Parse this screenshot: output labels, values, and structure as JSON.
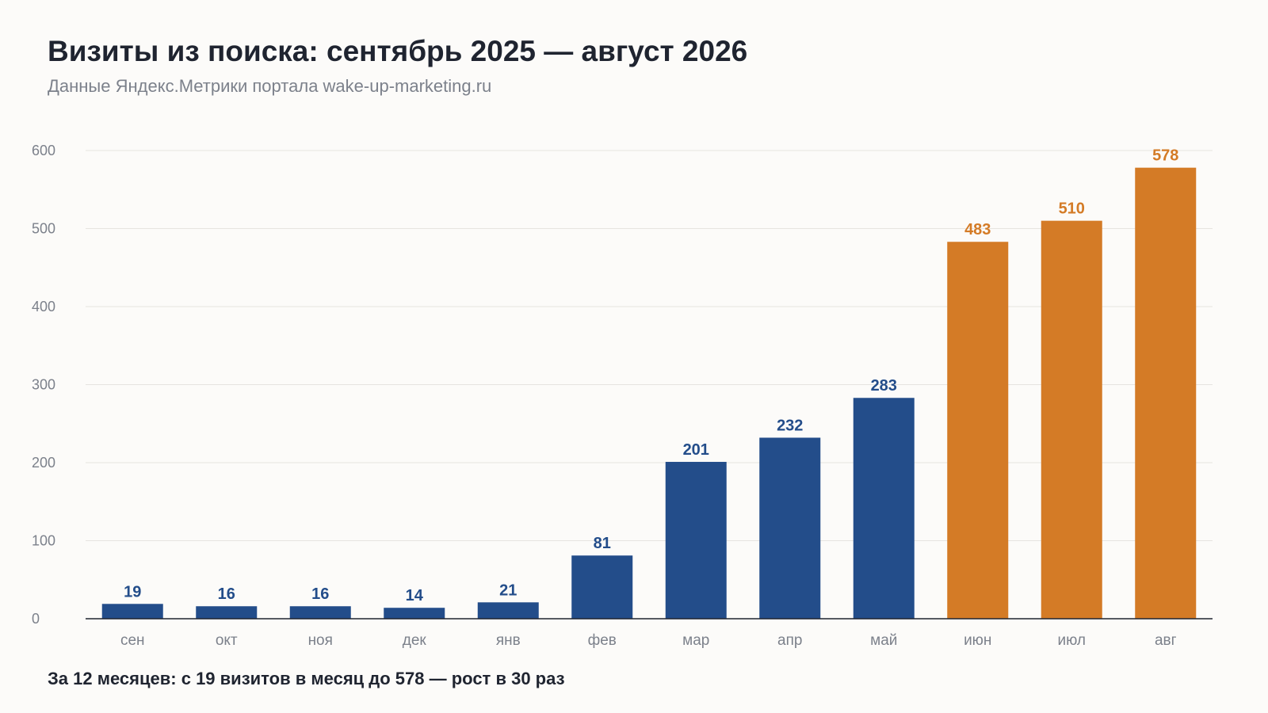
{
  "title": "Визиты из поиска: сентябрь 2025 — август 2026",
  "subtitle": "Данные Яндекс.Метрики портала wake-up-marketing.ru",
  "footnote": "За 12 месяцев: с 19 визитов в месяц до 578 — рост в 30 раз",
  "colors": {
    "primary": "#234d8a",
    "highlight": "#d47b26"
  },
  "chart_data": {
    "type": "bar",
    "categories": [
      "сен",
      "окт",
      "ноя",
      "дек",
      "янв",
      "фев",
      "мар",
      "апр",
      "май",
      "июн",
      "июл",
      "авг"
    ],
    "values": [
      19,
      16,
      16,
      14,
      21,
      81,
      201,
      232,
      283,
      483,
      510,
      578
    ],
    "highlight": [
      false,
      false,
      false,
      false,
      false,
      false,
      false,
      false,
      false,
      true,
      true,
      true
    ],
    "ylim": [
      0,
      600
    ],
    "yticks": [
      0,
      100,
      200,
      300,
      400,
      500,
      600
    ],
    "grid": true,
    "legend": "none"
  }
}
